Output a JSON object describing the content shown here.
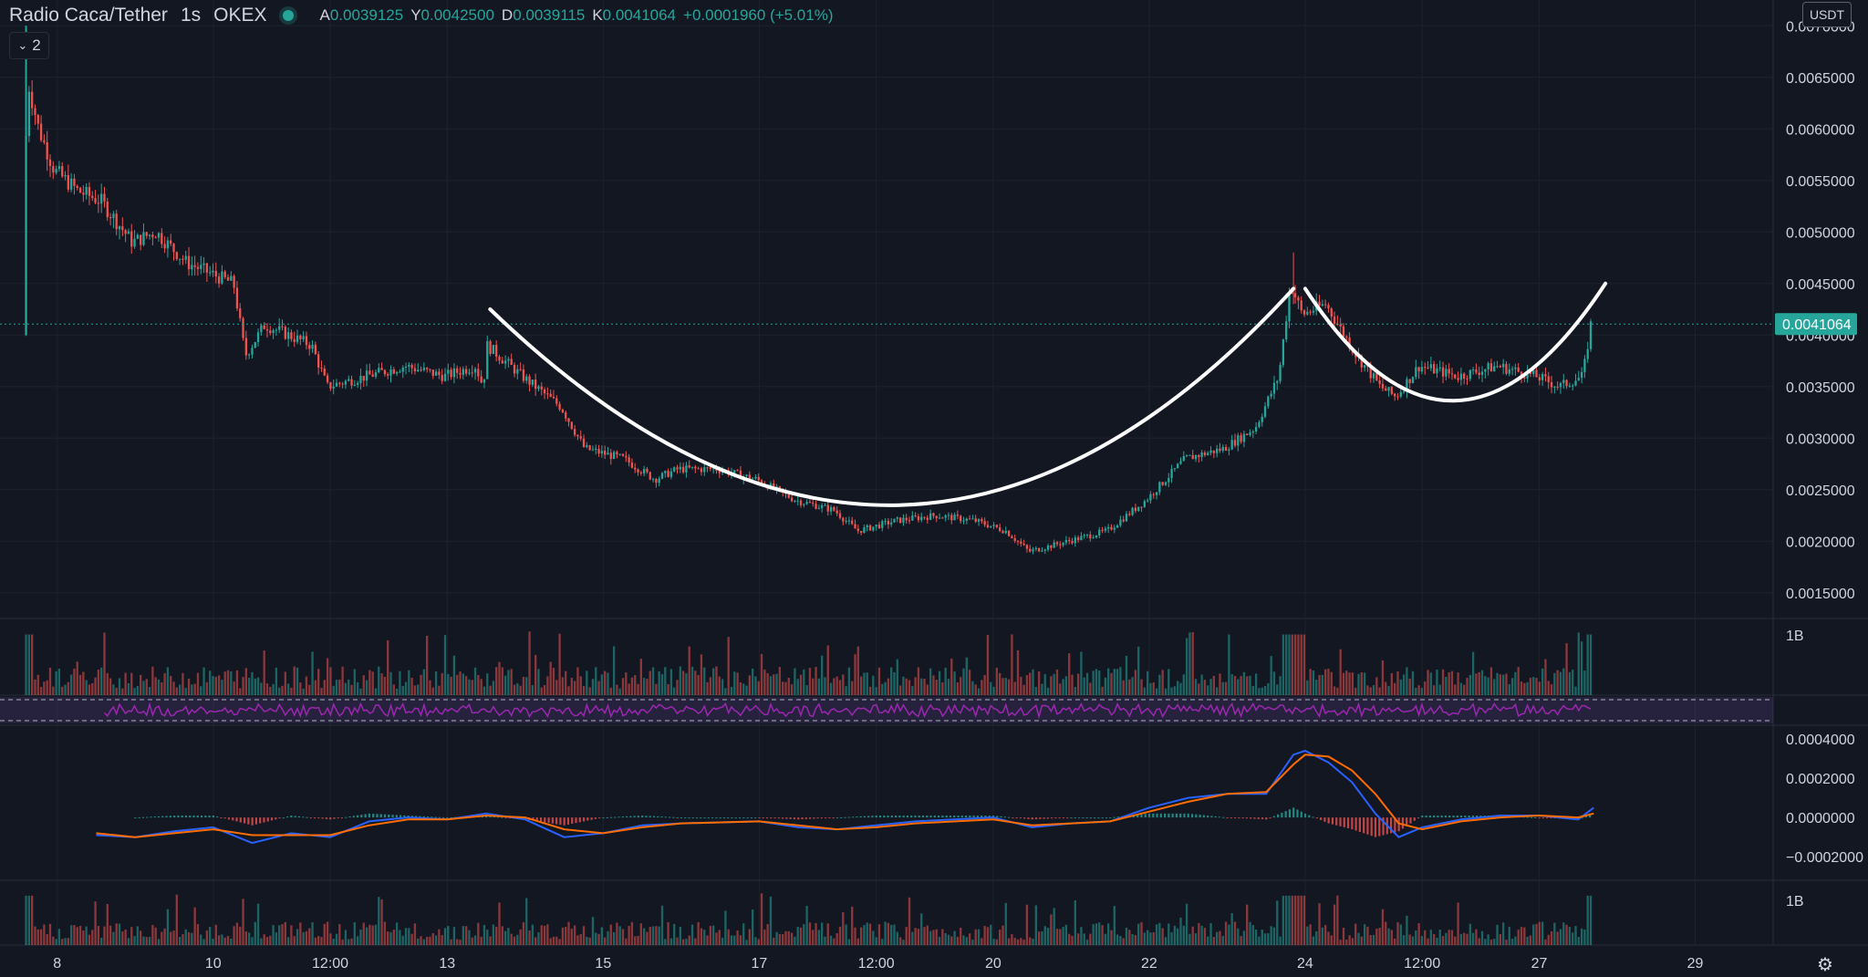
{
  "header": {
    "symbol": "Radio Caca/Tether",
    "interval": "1s",
    "exchange": "OKEX",
    "ohlc": [
      {
        "key": "A",
        "value": "0.0039125"
      },
      {
        "key": "Y",
        "value": "0.0042500"
      },
      {
        "key": "D",
        "value": "0.0039115"
      },
      {
        "key": "K",
        "value": "0.0041064"
      }
    ],
    "change": "+0.0001960 (+5.01%)",
    "collapse_count": "2"
  },
  "currency_label": "USDT",
  "colors": {
    "background": "#131722",
    "up": "#26a69a",
    "down": "#ef5350",
    "rsi": "#9c27b0",
    "macd": "#2962ff",
    "signal": "#ff6d00",
    "pattern": "#ffffff"
  },
  "chart_data": {
    "type": "candlestick",
    "current_price": "0.0041064",
    "price_axis_labels": [
      "0.0070000",
      "0.0065000",
      "0.0060000",
      "0.0055000",
      "0.0050000",
      "0.0045000",
      "0.0040000",
      "0.0035000",
      "0.0030000",
      "0.0025000",
      "0.0020000",
      "0.0015000"
    ],
    "price_ticks": [
      0.007,
      0.0065,
      0.006,
      0.0055,
      0.005,
      0.0045,
      0.004,
      0.0035,
      0.003,
      0.0025,
      0.002,
      0.0015
    ],
    "ylim": [
      0.00125,
      0.00725
    ],
    "time_axis_labels": [
      "8",
      "10",
      "12:00",
      "13",
      "15",
      "17",
      "12:00",
      "20",
      "22",
      "24",
      "12:00",
      "27",
      "29"
    ],
    "time_positions": [
      8,
      10,
      11.5,
      13,
      15,
      17,
      18.5,
      20,
      22,
      24,
      25.5,
      27,
      29
    ],
    "xlim": [
      7.5,
      30
    ],
    "price_path": [
      [
        7.6,
        0.004
      ],
      [
        7.65,
        0.0065
      ],
      [
        7.8,
        0.006
      ],
      [
        8.0,
        0.0056
      ],
      [
        8.3,
        0.0054
      ],
      [
        8.6,
        0.0053
      ],
      [
        9.0,
        0.0049
      ],
      [
        9.3,
        0.005
      ],
      [
        9.7,
        0.0047
      ],
      [
        10.0,
        0.0046
      ],
      [
        10.3,
        0.0045
      ],
      [
        10.45,
        0.0038
      ],
      [
        10.7,
        0.0041
      ],
      [
        11.0,
        0.004
      ],
      [
        11.3,
        0.0039
      ],
      [
        11.5,
        0.0035
      ],
      [
        12.0,
        0.0036
      ],
      [
        12.5,
        0.0037
      ],
      [
        13.0,
        0.0036
      ],
      [
        13.4,
        0.0037
      ],
      [
        13.5,
        0.0035
      ],
      [
        13.55,
        0.0039
      ],
      [
        14.0,
        0.0036
      ],
      [
        14.5,
        0.0033
      ],
      [
        14.8,
        0.0029
      ],
      [
        15.3,
        0.0028
      ],
      [
        15.7,
        0.0026
      ],
      [
        16.0,
        0.0027
      ],
      [
        16.5,
        0.0027
      ],
      [
        17.0,
        0.0026
      ],
      [
        17.5,
        0.0024
      ],
      [
        18.0,
        0.0023
      ],
      [
        18.3,
        0.0021
      ],
      [
        18.8,
        0.0022
      ],
      [
        19.3,
        0.00225
      ],
      [
        19.8,
        0.0022
      ],
      [
        20.2,
        0.0021
      ],
      [
        20.5,
        0.0019
      ],
      [
        21.0,
        0.002
      ],
      [
        21.5,
        0.0021
      ],
      [
        22.0,
        0.0024
      ],
      [
        22.5,
        0.0028
      ],
      [
        23.0,
        0.0029
      ],
      [
        23.4,
        0.0031
      ],
      [
        23.7,
        0.0036
      ],
      [
        23.85,
        0.0045
      ],
      [
        24.0,
        0.0042
      ],
      [
        24.3,
        0.0043
      ],
      [
        24.7,
        0.0038
      ],
      [
        25.0,
        0.0035
      ],
      [
        25.2,
        0.0034
      ],
      [
        25.5,
        0.0037
      ],
      [
        26.0,
        0.0036
      ],
      [
        26.5,
        0.0037
      ],
      [
        27.0,
        0.0036
      ],
      [
        27.3,
        0.0035
      ],
      [
        27.6,
        0.0036
      ],
      [
        27.7,
        0.0041
      ]
    ],
    "high_wick": [
      23.85,
      0.0048
    ],
    "pattern": "cup and handle",
    "pattern_curves": {
      "cup": [
        [
          13.55,
          0.00425
        ],
        [
          18.9,
          0.00035
        ],
        [
          23.85,
          0.00445
        ]
      ],
      "handle": [
        [
          24.0,
          0.00445
        ],
        [
          25.9,
          0.00225
        ],
        [
          27.85,
          0.0045
        ]
      ]
    },
    "volume_label": "1B",
    "macd_axis_labels": [
      "0.0004000",
      "0.0002000",
      "0.0000000",
      "−0.0002000"
    ],
    "macd_ticks": [
      0.0004,
      0.0002,
      0.0,
      -0.0002
    ],
    "macd_ylim": [
      -0.00032,
      0.00047
    ],
    "macd_line": [
      [
        8.5,
        -9e-05
      ],
      [
        9.0,
        -0.0001
      ],
      [
        9.5,
        -7e-05
      ],
      [
        10.0,
        -5e-05
      ],
      [
        10.5,
        -0.00013
      ],
      [
        11.0,
        -8e-05
      ],
      [
        11.5,
        -0.0001
      ],
      [
        12.0,
        -2e-05
      ],
      [
        12.5,
        0.0
      ],
      [
        13.0,
        -1e-05
      ],
      [
        13.5,
        2e-05
      ],
      [
        14.0,
        -1e-05
      ],
      [
        14.5,
        -0.0001
      ],
      [
        15.0,
        -8e-05
      ],
      [
        15.5,
        -4e-05
      ],
      [
        16.0,
        -3e-05
      ],
      [
        17.0,
        -2e-05
      ],
      [
        17.5,
        -5e-05
      ],
      [
        18.0,
        -6e-05
      ],
      [
        18.5,
        -4e-05
      ],
      [
        19.0,
        -2e-05
      ],
      [
        20.0,
        0.0
      ],
      [
        20.5,
        -5e-05
      ],
      [
        21.0,
        -3e-05
      ],
      [
        21.5,
        -2e-05
      ],
      [
        22.0,
        5e-05
      ],
      [
        22.5,
        0.0001
      ],
      [
        23.0,
        0.00012
      ],
      [
        23.5,
        0.00012
      ],
      [
        23.85,
        0.00032
      ],
      [
        24.0,
        0.00034
      ],
      [
        24.3,
        0.00028
      ],
      [
        24.6,
        0.00018
      ],
      [
        24.9,
        2e-05
      ],
      [
        25.2,
        -0.0001
      ],
      [
        25.5,
        -5e-05
      ],
      [
        26.0,
        -1e-05
      ],
      [
        26.5,
        1e-05
      ],
      [
        27.0,
        1e-05
      ],
      [
        27.5,
        -1e-05
      ],
      [
        27.7,
        5e-05
      ]
    ],
    "signal_line": [
      [
        8.5,
        -8e-05
      ],
      [
        9.0,
        -0.0001
      ],
      [
        9.5,
        -8e-05
      ],
      [
        10.0,
        -6e-05
      ],
      [
        10.5,
        -9e-05
      ],
      [
        11.0,
        -9e-05
      ],
      [
        11.5,
        -9e-05
      ],
      [
        12.0,
        -4e-05
      ],
      [
        12.5,
        -1e-05
      ],
      [
        13.0,
        -1e-05
      ],
      [
        13.5,
        1e-05
      ],
      [
        14.0,
        0.0
      ],
      [
        14.5,
        -6e-05
      ],
      [
        15.0,
        -8e-05
      ],
      [
        15.5,
        -5e-05
      ],
      [
        16.0,
        -3e-05
      ],
      [
        17.0,
        -2e-05
      ],
      [
        17.5,
        -4e-05
      ],
      [
        18.0,
        -6e-05
      ],
      [
        18.5,
        -5e-05
      ],
      [
        19.0,
        -3e-05
      ],
      [
        20.0,
        -1e-05
      ],
      [
        20.5,
        -4e-05
      ],
      [
        21.0,
        -3e-05
      ],
      [
        21.5,
        -2e-05
      ],
      [
        22.0,
        3e-05
      ],
      [
        22.5,
        8e-05
      ],
      [
        23.0,
        0.00012
      ],
      [
        23.5,
        0.00013
      ],
      [
        23.85,
        0.00027
      ],
      [
        24.0,
        0.00032
      ],
      [
        24.3,
        0.00031
      ],
      [
        24.6,
        0.00024
      ],
      [
        24.9,
        0.00012
      ],
      [
        25.2,
        -3e-05
      ],
      [
        25.5,
        -6e-05
      ],
      [
        26.0,
        -2e-05
      ],
      [
        26.5,
        0.0
      ],
      [
        27.0,
        1e-05
      ],
      [
        27.5,
        0.0
      ],
      [
        27.7,
        2e-05
      ]
    ]
  }
}
